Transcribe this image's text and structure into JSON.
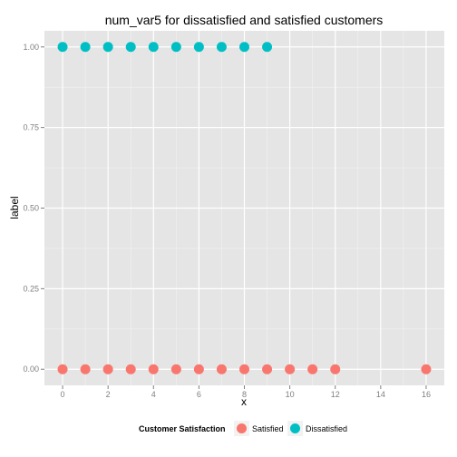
{
  "chart_data": {
    "type": "scatter",
    "title": "num_var5 for dissatisfied and satisfied customers",
    "xlabel": "x",
    "ylabel": "label",
    "xlim": [
      -0.8,
      16.8
    ],
    "ylim": [
      -0.05,
      1.05
    ],
    "x_ticks": [
      0,
      2,
      4,
      6,
      8,
      10,
      12,
      14,
      16
    ],
    "y_ticks": [
      0.0,
      0.25,
      0.5,
      0.75,
      1.0
    ],
    "x_tick_labels": [
      "0",
      "2",
      "4",
      "6",
      "8",
      "10",
      "12",
      "14",
      "16"
    ],
    "y_tick_labels": [
      "0.00",
      "0.25",
      "0.50",
      "0.75",
      "1.00"
    ],
    "grid": true,
    "legend_position": "bottom",
    "legend_title": "Customer Satisfaction",
    "series": [
      {
        "name": "Satisfied",
        "color": "#F8766D",
        "points": [
          [
            0,
            0
          ],
          [
            1,
            0
          ],
          [
            2,
            0
          ],
          [
            3,
            0
          ],
          [
            4,
            0
          ],
          [
            5,
            0
          ],
          [
            6,
            0
          ],
          [
            7,
            0
          ],
          [
            8,
            0
          ],
          [
            9,
            0
          ],
          [
            10,
            0
          ],
          [
            11,
            0
          ],
          [
            12,
            0
          ],
          [
            16,
            0
          ]
        ]
      },
      {
        "name": "Dissatisfied",
        "color": "#00BFC4",
        "points": [
          [
            0,
            1
          ],
          [
            1,
            1
          ],
          [
            2,
            1
          ],
          [
            3,
            1
          ],
          [
            4,
            1
          ],
          [
            5,
            1
          ],
          [
            6,
            1
          ],
          [
            7,
            1
          ],
          [
            8,
            1
          ],
          [
            9,
            1
          ]
        ]
      }
    ]
  }
}
